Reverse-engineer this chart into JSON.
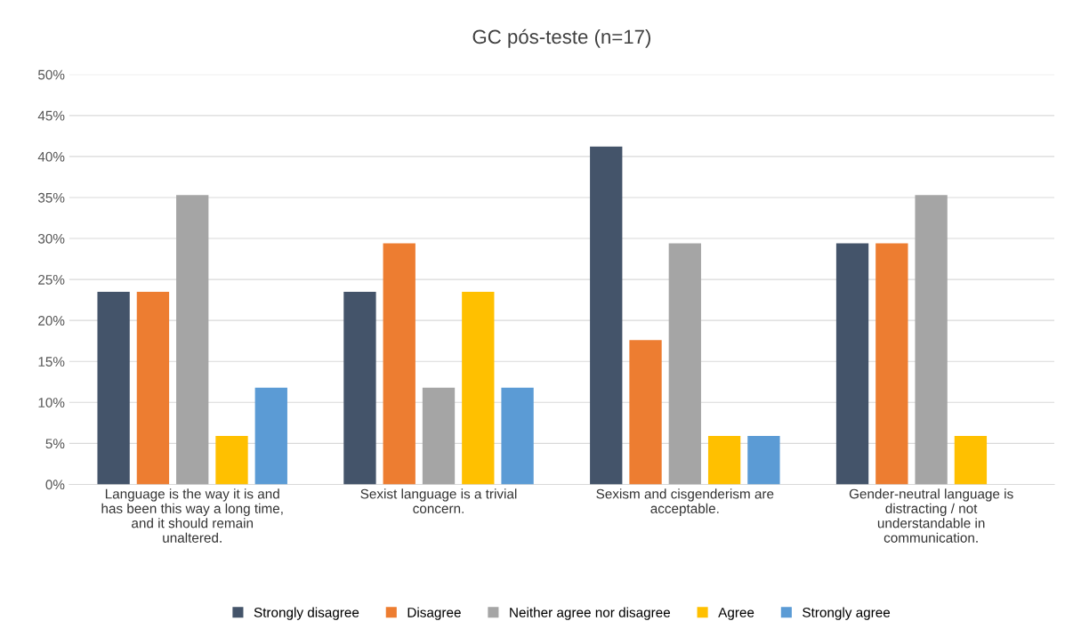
{
  "chart_data": {
    "type": "bar",
    "title": "GC pós-teste (n=17)",
    "categories": [
      "Language is the way it is and\nhas been this way a long time,\nand it should remain\nunaltered.",
      "Sexist language is a trivial\nconcern.",
      "Sexism and cisgenderism are\nacceptable.",
      "Gender-neutral language is\ndistracting / not\nunderstandable in\ncommunication."
    ],
    "series": [
      {
        "name": "Strongly disagree",
        "color": "#44546a",
        "values": [
          23.5,
          23.5,
          41.2,
          29.4
        ]
      },
      {
        "name": "Disagree",
        "color": "#ed7d31",
        "values": [
          23.5,
          29.4,
          17.6,
          29.4
        ]
      },
      {
        "name": "Neither agree nor disagree",
        "color": "#a5a5a5",
        "values": [
          35.3,
          11.8,
          29.4,
          35.3
        ]
      },
      {
        "name": "Agree",
        "color": "#ffc000",
        "values": [
          5.9,
          23.5,
          5.9,
          5.9
        ]
      },
      {
        "name": "Strongly agree",
        "color": "#5b9bd5",
        "values": [
          11.8,
          11.8,
          5.9,
          0
        ]
      }
    ],
    "ylim": [
      0,
      50
    ],
    "yticks": [
      {
        "value": 0,
        "label": "0%"
      },
      {
        "value": 5,
        "label": "5%"
      },
      {
        "value": 10,
        "label": "10%"
      },
      {
        "value": 15,
        "label": "15%"
      },
      {
        "value": 20,
        "label": "20%"
      },
      {
        "value": 25,
        "label": "25%"
      },
      {
        "value": 30,
        "label": "30%"
      },
      {
        "value": 35,
        "label": "35%"
      },
      {
        "value": 40,
        "label": "40%"
      },
      {
        "value": 45,
        "label": "45%"
      },
      {
        "value": 50,
        "label": "50%"
      }
    ],
    "grid": "y",
    "legend": "bottom"
  }
}
